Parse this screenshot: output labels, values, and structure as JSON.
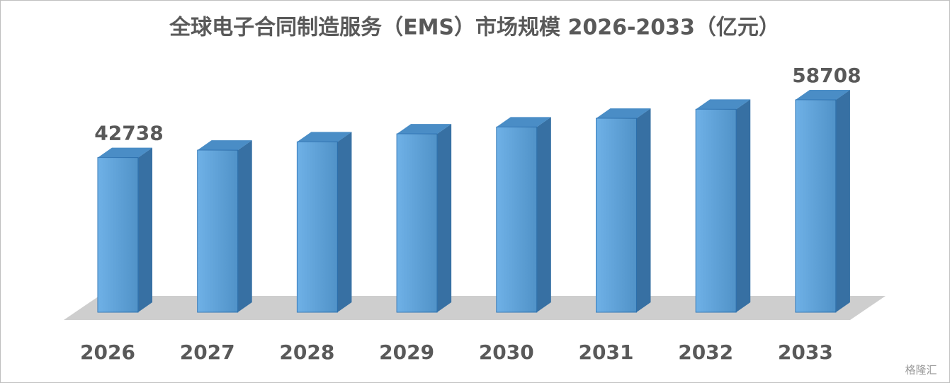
{
  "chart_data": {
    "type": "bar3d",
    "title": "全球电子合同制造服务（EMS）市场规模 2026-2033（亿元）",
    "categories": [
      "2026",
      "2027",
      "2028",
      "2029",
      "2030",
      "2031",
      "2032",
      "2033"
    ],
    "values": [
      42738,
      44800,
      47100,
      49300,
      51200,
      53600,
      56100,
      58708
    ],
    "value_labels": [
      "42738",
      null,
      null,
      null,
      null,
      null,
      null,
      "58708"
    ],
    "color": "#5ba6e3",
    "watermark": "格隆汇"
  }
}
